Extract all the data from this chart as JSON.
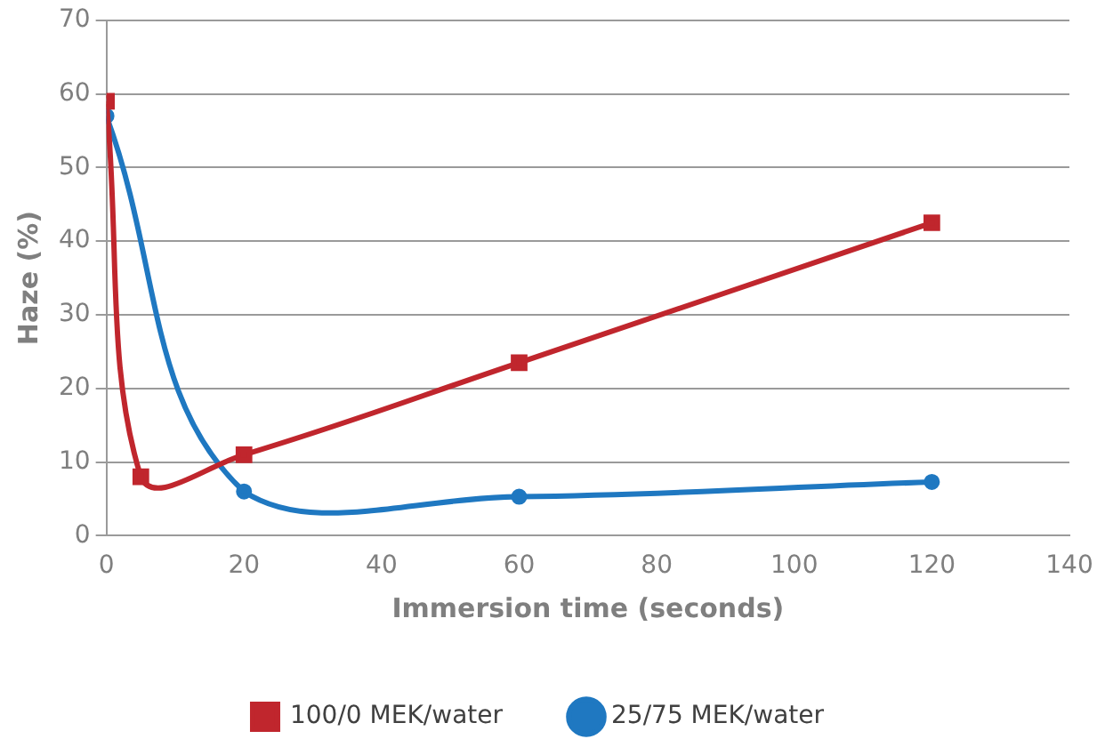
{
  "chart_data": {
    "type": "line",
    "xlabel": "Immersion time (seconds)",
    "ylabel": "Haze (%)",
    "xlim": [
      0,
      140
    ],
    "xticks": [
      0,
      20,
      40,
      60,
      80,
      100,
      120,
      140
    ],
    "ylim": [
      0,
      70
    ],
    "yticks": [
      0,
      10,
      20,
      30,
      40,
      50,
      60,
      70
    ],
    "grid": "y",
    "legend": "bottom",
    "series": [
      {
        "name": "100/0 MEK/water",
        "color": "#c0262d",
        "marker": "square",
        "x": [
          0,
          5,
          20,
          60,
          120
        ],
        "values": [
          59,
          8,
          11,
          23.5,
          42.5
        ]
      },
      {
        "name": "25/75 MEK/water",
        "color": "#1f78c1",
        "marker": "circle",
        "x": [
          0,
          20,
          60,
          120
        ],
        "values": [
          57,
          6,
          5.3,
          7.3
        ]
      }
    ]
  }
}
